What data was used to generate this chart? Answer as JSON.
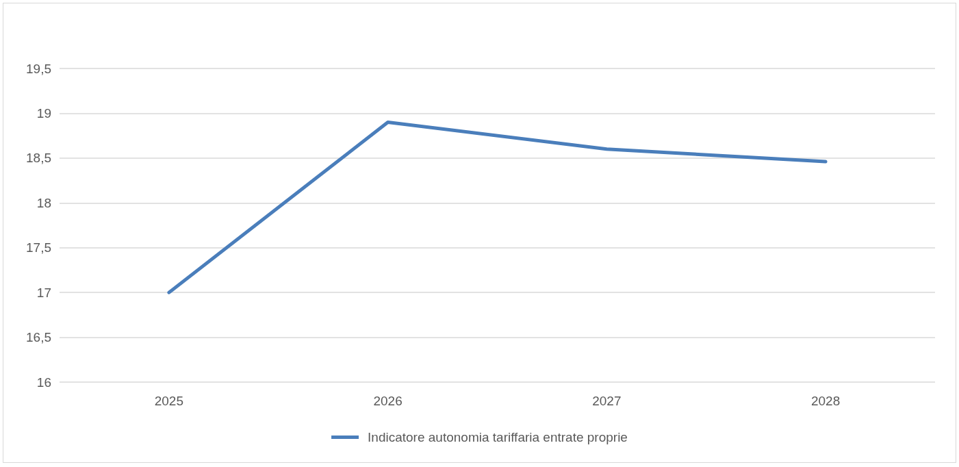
{
  "chart_data": {
    "type": "line",
    "categories": [
      "2025",
      "2026",
      "2027",
      "2028"
    ],
    "series": [
      {
        "name": "Indicatore autonomia tariffaria entrate proprie",
        "color": "#4a7ebb",
        "values": [
          17.0,
          18.9,
          18.6,
          18.46
        ]
      }
    ],
    "ylim": [
      16,
      19.5
    ],
    "yticks": [
      16,
      {
        "value": 16.5,
        "label": "16,5"
      },
      17,
      {
        "value": 17.5,
        "label": "17,5"
      },
      18,
      {
        "value": 18.5,
        "label": "18,5"
      },
      19,
      {
        "value": 19.5,
        "label": "19,5"
      }
    ],
    "grid": "y",
    "legend": "bottom",
    "marker": "none",
    "line_style": "solid"
  }
}
